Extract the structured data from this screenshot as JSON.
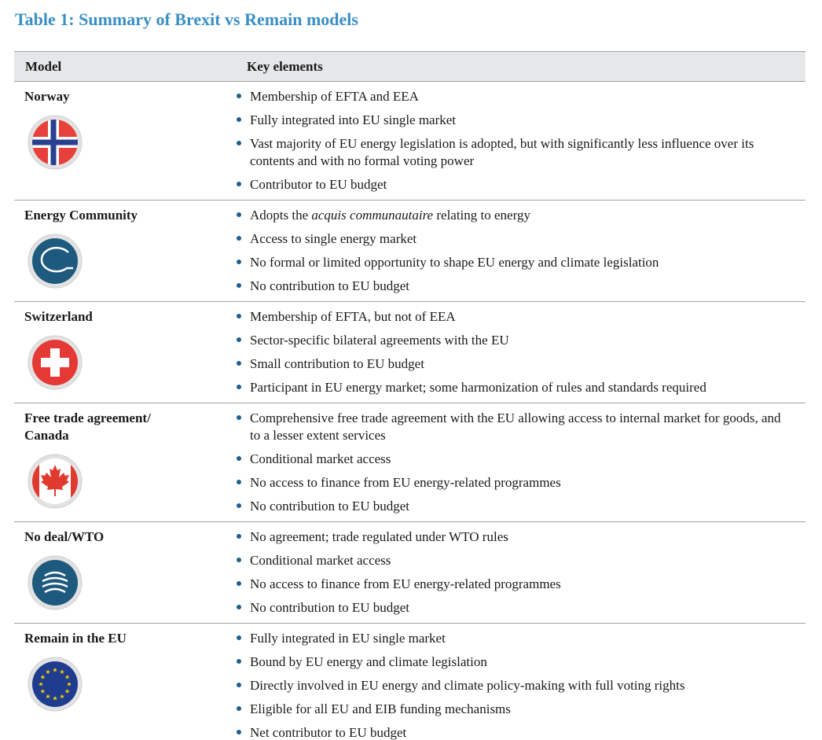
{
  "title": "Table 1: Summary of Brexit vs Remain models",
  "table": {
    "header": [
      "Model",
      "Key elements"
    ],
    "rows": [
      {
        "model": "Norway",
        "elements": [
          "Membership of EFTA and EEA",
          "Fully integrated into EU single market",
          "Vast majority of EU energy legislation is adopted, but with significantly less influence over its contents and with no formal voting power",
          "Contributor to EU budget"
        ]
      },
      {
        "model": "Energy Community",
        "elements": [
          [
            "Adopts the ",
            "acquis communautaire",
            " relating to energy"
          ],
          "Access to single energy market",
          "No formal or limited opportunity to shape EU energy and climate legislation",
          "No contribution to EU budget"
        ]
      },
      {
        "model": "Switzerland",
        "elements": [
          "Membership of EFTA, but not of EEA",
          "Sector-specific bilateral agreements with the EU",
          "Small contribution to EU budget",
          "Participant in EU energy market; some harmonization of rules and standards required"
        ]
      },
      {
        "model": "Free trade agreement/ Canada",
        "elements": [
          "Comprehensive free trade agreement with the EU allowing access to internal market for goods, and to a lesser extent services",
          "Conditional market access",
          "No access to finance from EU energy-related programmes",
          "No contribution to EU budget"
        ]
      },
      {
        "model": "No deal/WTO",
        "elements": [
          "No agreement; trade regulated under WTO rules",
          "Conditional market access",
          "No access to finance from EU energy-related programmes",
          "No contribution to EU budget"
        ]
      },
      {
        "model": "Remain in the EU",
        "elements": [
          "Fully integrated in EU single market",
          "Bound by EU energy and climate legislation",
          "Directly involved in EU energy and climate policy-making with full voting rights",
          "Eligible for all EU and EIB funding mechanisms",
          "Net contributor to EU budget"
        ]
      }
    ]
  }
}
